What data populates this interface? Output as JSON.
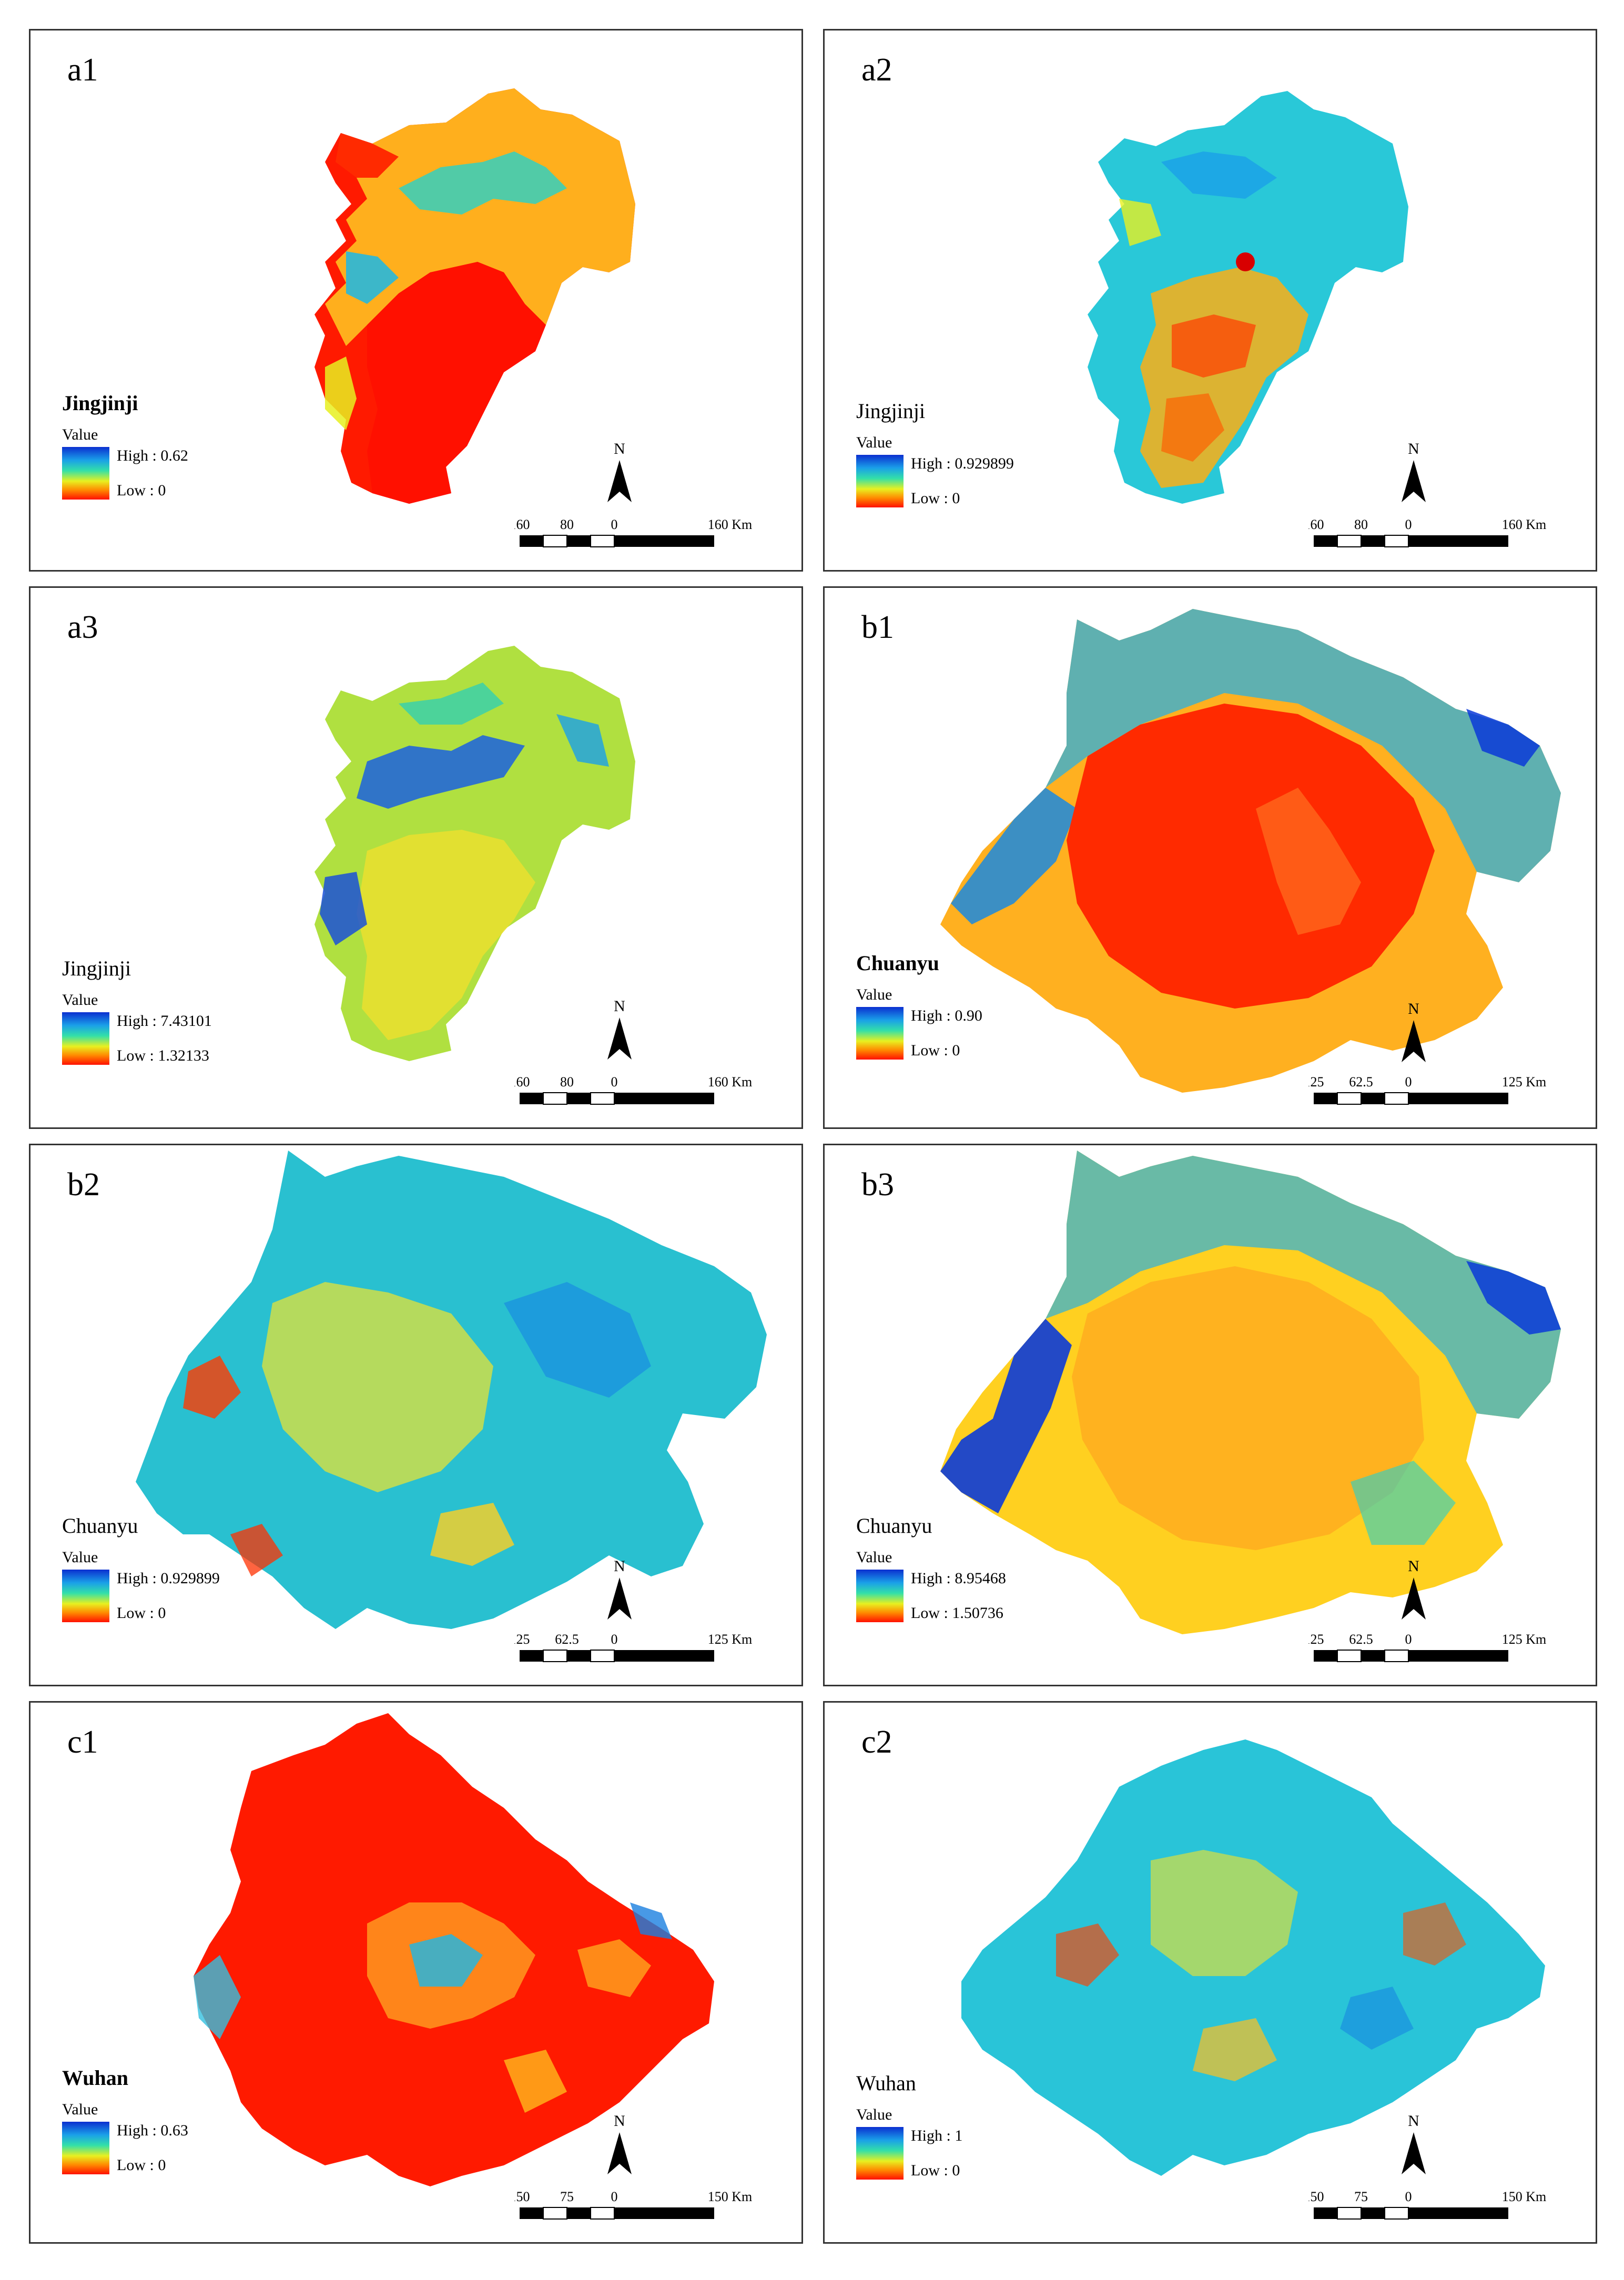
{
  "scale_unit": "Km",
  "north_label": "N",
  "panels": [
    {
      "id": "a1",
      "region": "Jingjinji",
      "bold": true,
      "legend_title": "Value",
      "high": "High : 0.62",
      "low": "Low : 0",
      "scale_ticks": [
        "160",
        "80",
        "0",
        "160 Km"
      ]
    },
    {
      "id": "a2",
      "region": "Jingjinji",
      "bold": false,
      "legend_title": "Value",
      "high": "High : 0.929899",
      "low": "Low : 0",
      "scale_ticks": [
        "160",
        "80",
        "0",
        "160 Km"
      ]
    },
    {
      "id": "a3",
      "region": "Jingjinji",
      "bold": false,
      "legend_title": "Value",
      "high": "High : 7.43101",
      "low": "Low : 1.32133",
      "scale_ticks": [
        "160",
        "80",
        "0",
        "160 Km"
      ]
    },
    {
      "id": "b1",
      "region": "Chuanyu",
      "bold": true,
      "legend_title": "Value",
      "high": "High : 0.90",
      "low": "Low : 0",
      "scale_ticks": [
        "125",
        "62.5",
        "0",
        "125 Km"
      ]
    },
    {
      "id": "b2",
      "region": "Chuanyu",
      "bold": false,
      "legend_title": "Value",
      "high": "High : 0.929899",
      "low": "Low : 0",
      "scale_ticks": [
        "125",
        "62.5",
        "0",
        "125 Km"
      ]
    },
    {
      "id": "b3",
      "region": "Chuanyu",
      "bold": false,
      "legend_title": "Value",
      "high": "High : 8.95468",
      "low": "Low : 1.50736",
      "scale_ticks": [
        "125",
        "62.5",
        "0",
        "125 Km"
      ]
    },
    {
      "id": "c1",
      "region": "Wuhan",
      "bold": true,
      "legend_title": "Value",
      "high": "High : 0.63",
      "low": "Low : 0",
      "scale_ticks": [
        "150",
        "75",
        "0",
        "150 Km"
      ]
    },
    {
      "id": "c2",
      "region": "Wuhan",
      "bold": false,
      "legend_title": "Value",
      "high": "High : 1",
      "low": "Low : 0",
      "scale_ticks": [
        "150",
        "75",
        "0",
        "150 Km"
      ]
    }
  ],
  "colors": {
    "high_blue": "#0b2fd0",
    "cyan": "#1ab8e8",
    "green": "#33e0a8",
    "yellow": "#e8f020",
    "orange": "#ff8a00",
    "low_red": "#ff1000"
  }
}
